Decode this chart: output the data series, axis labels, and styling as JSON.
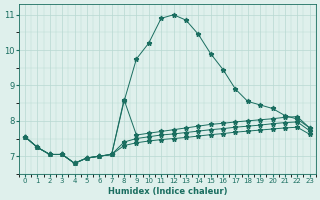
{
  "xlabel": "Humidex (Indice chaleur)",
  "ylabel": "",
  "bg_color": "#dff0ec",
  "grid_color": "#b8d8d2",
  "line_color": "#1a6e60",
  "xlim": [
    -0.5,
    23.5
  ],
  "ylim": [
    6.5,
    11.3
  ],
  "yticks": [
    7,
    8,
    9,
    10,
    11
  ],
  "xticks": [
    0,
    1,
    2,
    3,
    4,
    5,
    6,
    7,
    8,
    9,
    10,
    11,
    12,
    13,
    14,
    15,
    16,
    17,
    18,
    19,
    20,
    21,
    22,
    23
  ],
  "lines": [
    {
      "x": [
        0,
        1,
        2,
        3,
        4,
        5,
        6,
        7,
        8,
        9,
        10,
        11,
        12,
        13,
        14,
        15,
        16,
        17,
        18,
        19,
        20,
        21,
        22,
        23
      ],
      "y": [
        7.55,
        7.25,
        7.05,
        7.05,
        6.8,
        6.95,
        7.0,
        7.05,
        8.55,
        9.75,
        10.2,
        10.9,
        11.0,
        10.85,
        10.45,
        9.9,
        9.45,
        8.9,
        8.55,
        8.45,
        8.35,
        8.15,
        8.05,
        7.8
      ]
    },
    {
      "x": [
        0,
        1,
        2,
        3,
        4,
        5,
        6,
        7,
        8,
        9,
        10,
        11,
        12,
        13,
        14,
        15,
        16,
        17,
        18,
        19,
        20,
        21,
        22,
        23
      ],
      "y": [
        7.55,
        7.25,
        7.05,
        7.05,
        6.8,
        6.95,
        7.0,
        7.05,
        8.6,
        7.6,
        7.65,
        7.7,
        7.75,
        7.8,
        7.85,
        7.9,
        7.93,
        7.97,
        8.0,
        8.03,
        8.06,
        8.1,
        8.12,
        7.8
      ]
    },
    {
      "x": [
        0,
        1,
        2,
        3,
        4,
        5,
        6,
        7,
        8,
        9,
        10,
        11,
        12,
        13,
        14,
        15,
        16,
        17,
        18,
        19,
        20,
        21,
        22,
        23
      ],
      "y": [
        7.55,
        7.25,
        7.05,
        7.05,
        6.8,
        6.95,
        7.0,
        7.05,
        7.4,
        7.5,
        7.55,
        7.6,
        7.63,
        7.67,
        7.71,
        7.75,
        7.78,
        7.82,
        7.85,
        7.88,
        7.92,
        7.95,
        7.97,
        7.72
      ]
    },
    {
      "x": [
        0,
        1,
        2,
        3,
        4,
        5,
        6,
        7,
        8,
        9,
        10,
        11,
        12,
        13,
        14,
        15,
        16,
        17,
        18,
        19,
        20,
        21,
        22,
        23
      ],
      "y": [
        7.55,
        7.25,
        7.05,
        7.05,
        6.8,
        6.95,
        7.0,
        7.05,
        7.3,
        7.38,
        7.43,
        7.47,
        7.5,
        7.53,
        7.57,
        7.61,
        7.64,
        7.68,
        7.71,
        7.74,
        7.77,
        7.8,
        7.82,
        7.62
      ]
    }
  ]
}
